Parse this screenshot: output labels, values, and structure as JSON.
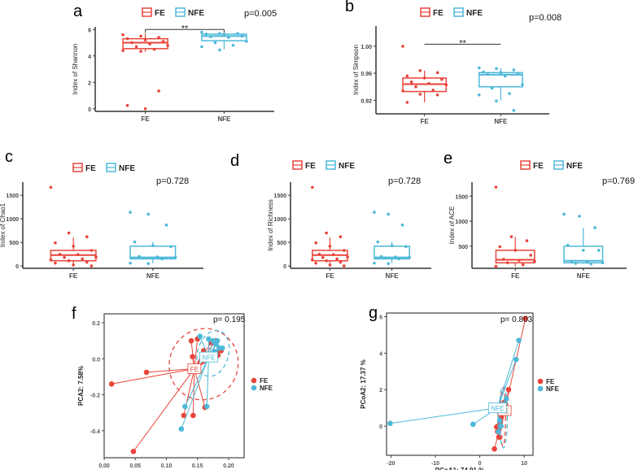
{
  "colors": {
    "FE": "#e8443a",
    "NFE": "#4db8d8",
    "axis": "#333333"
  },
  "chart_data": [
    {
      "id": "a",
      "panel_label": "a",
      "type": "box",
      "ylabel": "Index of Shannon",
      "ylim": [
        -0.2,
        6.2
      ],
      "yticks": [
        0,
        2,
        4,
        6
      ],
      "categories": [
        "FE",
        "NFE"
      ],
      "legend": [
        "FE",
        "NFE"
      ],
      "p_value": "p=0.005",
      "significance": {
        "label": "**",
        "y": 6.0,
        "bracket": true
      },
      "series": [
        {
          "name": "FE",
          "box": {
            "low": 4.3,
            "q1": 4.55,
            "median": 5.0,
            "q3": 5.3,
            "high": 5.7
          },
          "points": [
            5.6,
            5.5,
            5.4,
            5.3,
            5.2,
            5.1,
            5.0,
            4.9,
            4.8,
            4.7,
            4.5,
            4.4,
            4.35,
            1.35,
            0.25,
            0
          ]
        },
        {
          "name": "NFE",
          "box": {
            "low": 4.5,
            "q1": 5.15,
            "median": 5.5,
            "q3": 5.65,
            "high": 5.8
          },
          "points": [
            5.8,
            5.7,
            5.7,
            5.65,
            5.6,
            5.5,
            5.45,
            5.4,
            5.1,
            5.0,
            4.8,
            4.7,
            4.45
          ]
        }
      ]
    },
    {
      "id": "b",
      "panel_label": "b",
      "type": "box",
      "ylabel": "Index of Simpson",
      "ylim": [
        0.9,
        1.03
      ],
      "yticks": [
        0.92,
        0.96,
        1.0
      ],
      "ytick_labels": [
        "0.92",
        "0.96",
        "1.00"
      ],
      "categories": [
        "FE",
        "NFE"
      ],
      "legend": [
        "FE",
        "NFE"
      ],
      "p_value": "p=0.008",
      "significance": {
        "label": "**",
        "y": 1.003,
        "bracket": false
      },
      "series": [
        {
          "name": "FE",
          "box": {
            "low": 0.917,
            "q1": 0.933,
            "median": 0.944,
            "q3": 0.953,
            "high": 0.964
          },
          "points": [
            1.0,
            0.964,
            0.961,
            0.956,
            0.953,
            0.951,
            0.947,
            0.945,
            0.943,
            0.94,
            0.935,
            0.934,
            0.929,
            0.928,
            0.917
          ]
        },
        {
          "name": "NFE",
          "box": {
            "low": 0.92,
            "q1": 0.94,
            "median": 0.958,
            "q3": 0.961,
            "high": 0.968
          },
          "points": [
            0.968,
            0.967,
            0.965,
            0.962,
            0.961,
            0.96,
            0.959,
            0.956,
            0.943,
            0.938,
            0.93,
            0.928,
            0.919,
            0.905
          ]
        }
      ]
    },
    {
      "id": "c",
      "panel_label": "c",
      "type": "box",
      "ylabel": "Index of Chao1",
      "ylim": [
        -50,
        1780
      ],
      "yticks": [
        0,
        500,
        1000,
        1500
      ],
      "categories": [
        "FE",
        "NFE"
      ],
      "legend": [
        "FE",
        "NFE"
      ],
      "p_value": "p=0.728",
      "series": [
        {
          "name": "FE",
          "box": {
            "low": 0,
            "q1": 110,
            "median": 230,
            "q3": 330,
            "high": 600
          },
          "points": [
            1670,
            700,
            620,
            490,
            420,
            330,
            250,
            240,
            190,
            180,
            150,
            130,
            110,
            80,
            60,
            20,
            0
          ]
        },
        {
          "name": "NFE",
          "box": {
            "low": 60,
            "q1": 150,
            "median": 180,
            "q3": 420,
            "high": 510
          },
          "points": [
            1140,
            1100,
            870,
            510,
            430,
            410,
            200,
            190,
            180,
            170,
            150,
            60,
            50
          ]
        }
      ]
    },
    {
      "id": "d",
      "panel_label": "d",
      "type": "box",
      "ylabel": "Index of Richness",
      "ylim": [
        -50,
        1780
      ],
      "yticks": [
        0,
        500,
        1000,
        1500
      ],
      "categories": [
        "FE",
        "NFE"
      ],
      "legend": [
        "FE",
        "NFE"
      ],
      "p_value": "p=0.728",
      "series": [
        {
          "name": "FE",
          "box": {
            "low": 0,
            "q1": 110,
            "median": 230,
            "q3": 330,
            "high": 600
          },
          "points": [
            1670,
            700,
            620,
            490,
            420,
            330,
            250,
            240,
            190,
            180,
            150,
            130,
            110,
            80,
            60,
            20,
            0
          ]
        },
        {
          "name": "NFE",
          "box": {
            "low": 60,
            "q1": 150,
            "median": 180,
            "q3": 420,
            "high": 510
          },
          "points": [
            1140,
            1100,
            870,
            510,
            430,
            410,
            200,
            190,
            180,
            170,
            150,
            60,
            50
          ]
        }
      ]
    },
    {
      "id": "e",
      "panel_label": "e",
      "type": "box",
      "ylabel": "Index of ACE",
      "ylim": [
        60,
        1780
      ],
      "yticks": [
        500,
        1000,
        1500
      ],
      "categories": [
        "FE",
        "NFE"
      ],
      "legend": [
        "FE",
        "NFE"
      ],
      "p_value": "p=0.769",
      "series": [
        {
          "name": "FE",
          "box": {
            "low": 100,
            "q1": 170,
            "median": 230,
            "q3": 420,
            "high": 690
          },
          "points": [
            1680,
            690,
            610,
            490,
            420,
            320,
            240,
            220,
            200,
            170,
            130,
            100
          ]
        },
        {
          "name": "NFE",
          "box": {
            "low": 150,
            "q1": 170,
            "median": 210,
            "q3": 500,
            "high": 870
          },
          "points": [
            1140,
            1100,
            870,
            520,
            420,
            420,
            200,
            180,
            170,
            160,
            150
          ]
        }
      ]
    },
    {
      "id": "f",
      "panel_label": "f",
      "type": "scatter",
      "xlabel": "PCA1: 64.67%",
      "ylabel": "PCA2: 7.58%",
      "xlim": [
        0.0,
        0.225
      ],
      "ylim": [
        -0.55,
        0.25
      ],
      "xticks": [
        0.0,
        0.05,
        0.1,
        0.15,
        0.2
      ],
      "xtick_labels": [
        "0.00",
        "0.05",
        "0.10",
        "0.15",
        "0.20"
      ],
      "yticks": [
        -0.4,
        -0.2,
        0.0,
        0.2
      ],
      "ytick_labels": [
        "-0.4",
        "-0.2",
        "0.0",
        "0.2"
      ],
      "legend": [
        "FE",
        "NFE"
      ],
      "p_value": "p= 0.195",
      "series": [
        {
          "name": "FE",
          "centroid": [
            0.145,
            -0.055
          ],
          "ellipse": {
            "cx": 0.16,
            "cy": -0.03,
            "rx": 0.055,
            "ry": 0.2,
            "angle": 25
          },
          "points": [
            [
              0.012,
              -0.14
            ],
            [
              0.068,
              -0.075
            ],
            [
              0.047,
              -0.515
            ],
            [
              0.128,
              -0.315
            ],
            [
              0.143,
              -0.315
            ],
            [
              0.162,
              -0.27
            ],
            [
              0.14,
              0.1
            ],
            [
              0.142,
              0.012
            ],
            [
              0.15,
              0.11
            ],
            [
              0.16,
              0.045
            ],
            [
              0.18,
              0.1
            ],
            [
              0.185,
              0.05
            ],
            [
              0.183,
              0.02
            ],
            [
              0.188,
              0.045
            ],
            [
              0.172,
              0.09
            ]
          ]
        },
        {
          "name": "NFE",
          "centroid": [
            0.168,
            0.01
          ],
          "ellipse": {
            "cx": 0.175,
            "cy": 0.03,
            "rx": 0.025,
            "ry": 0.13,
            "angle": 15
          },
          "points": [
            [
              0.154,
              0.125
            ],
            [
              0.168,
              0.11
            ],
            [
              0.13,
              -0.265
            ],
            [
              0.124,
              -0.39
            ],
            [
              0.165,
              -0.265
            ],
            [
              0.175,
              0.1
            ],
            [
              0.18,
              0.08
            ],
            [
              0.185,
              0.06
            ],
            [
              0.178,
              0.04
            ],
            [
              0.19,
              0.06
            ],
            [
              0.182,
              0.1
            ]
          ]
        }
      ]
    },
    {
      "id": "g",
      "panel_label": "g",
      "type": "scatter",
      "xlabel": "PCoA1:  74.91 %",
      "ylabel": "PCoA2:  17.37 %",
      "xlim": [
        -21,
        12
      ],
      "ylim": [
        -1.6,
        6.2
      ],
      "xticks": [
        -20,
        -10,
        0,
        10
      ],
      "xtick_labels": [
        "-20",
        "-10",
        "0",
        "10"
      ],
      "yticks": [
        0,
        2,
        4,
        6
      ],
      "ytick_labels": [
        "0",
        "2",
        "4",
        "6"
      ],
      "legend": [
        "FE",
        "NFE"
      ],
      "p_value": "p= 0.803",
      "series": [
        {
          "name": "FE",
          "centroid": [
            5.6,
            0.85
          ],
          "ellipse": {
            "cx": 5.2,
            "cy": 0.5,
            "rx": 0.6,
            "ry": 1.6,
            "angle": 0
          },
          "points": [
            [
              10.3,
              5.9
            ],
            [
              6.5,
              2
            ],
            [
              6,
              1.5
            ],
            [
              5.8,
              1.2
            ],
            [
              5.5,
              1.3
            ],
            [
              5,
              0.8
            ],
            [
              4.8,
              0.5
            ],
            [
              4.5,
              0.2
            ],
            [
              4.2,
              0
            ],
            [
              3.8,
              -0.05
            ],
            [
              4,
              -0.3
            ],
            [
              4.5,
              -0.6
            ],
            [
              3.3,
              -1.25
            ],
            [
              4.3,
              -0.6
            ]
          ]
        },
        {
          "name": "NFE",
          "centroid": [
            4.0,
            1.0
          ],
          "ellipse": {
            "cx": 5.3,
            "cy": 0.5,
            "rx": 0.9,
            "ry": 1.7,
            "angle": 0
          },
          "points": [
            [
              -20.2,
              0.15
            ],
            [
              -1.5,
              0.1
            ],
            [
              8.8,
              4.7
            ],
            [
              8.2,
              3.65
            ],
            [
              6,
              1.5
            ],
            [
              5.5,
              1.2
            ],
            [
              4.5,
              0.3
            ],
            [
              4.8,
              0.0
            ],
            [
              4.2,
              -0.3
            ]
          ]
        }
      ]
    }
  ]
}
